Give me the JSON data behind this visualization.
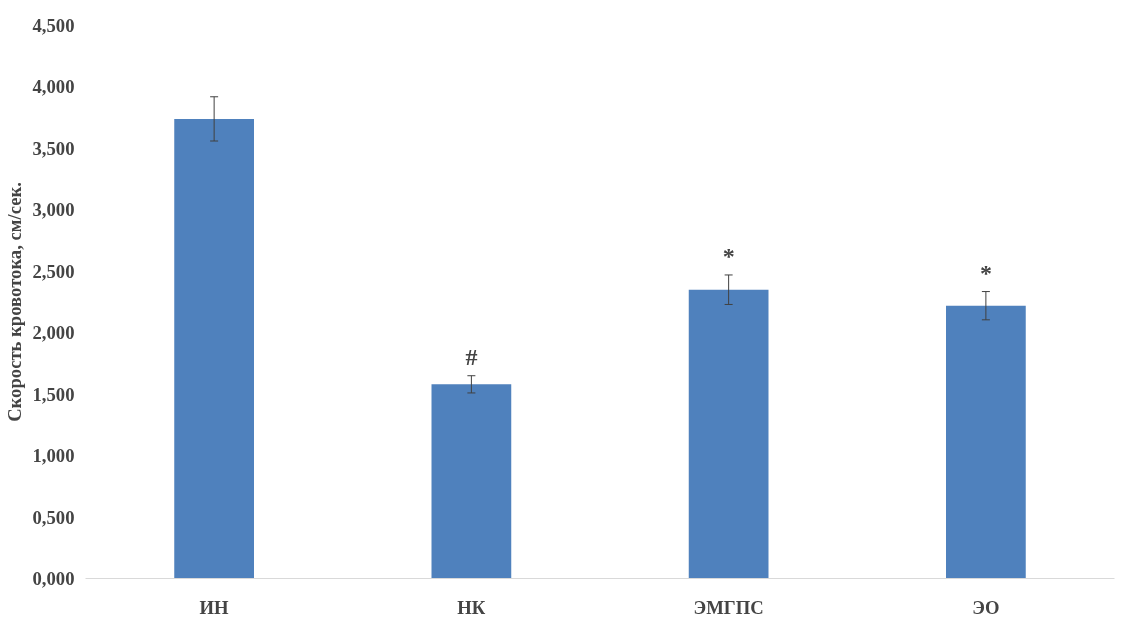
{
  "chart_data": {
    "type": "bar",
    "ylabel": "Скорость кровотока, см/сек.",
    "categories": [
      "ИН",
      "НК",
      "ЭМГПС",
      "ЭО"
    ],
    "series": [
      {
        "color": "#4f81bd",
        "values": [
          3.74,
          1.58,
          2.35,
          2.22
        ],
        "errors": [
          0.18,
          0.07,
          0.12,
          0.115
        ]
      }
    ],
    "ylim": [
      0,
      4.5
    ],
    "yticks": [
      {
        "value": 0,
        "label": "0,000"
      },
      {
        "value": 0.5,
        "label": "0,500"
      },
      {
        "value": 1,
        "label": "1,000"
      },
      {
        "value": 1.5,
        "label": "1,500"
      },
      {
        "value": 2,
        "label": "2,000"
      },
      {
        "value": 2.5,
        "label": "2,500"
      },
      {
        "value": 3,
        "label": "3,000"
      },
      {
        "value": 3.5,
        "label": "3,500"
      },
      {
        "value": 4,
        "label": "4,000"
      },
      {
        "value": 4.5,
        "label": "4,500"
      }
    ],
    "annotations": [
      {
        "text": "#",
        "x": "НК",
        "y": 1.58
      },
      {
        "text": "*",
        "x": "ЭМГПС",
        "y": 2.35
      },
      {
        "text": "*",
        "x": "ЭО",
        "y": 2.22
      }
    ],
    "grid": false
  }
}
